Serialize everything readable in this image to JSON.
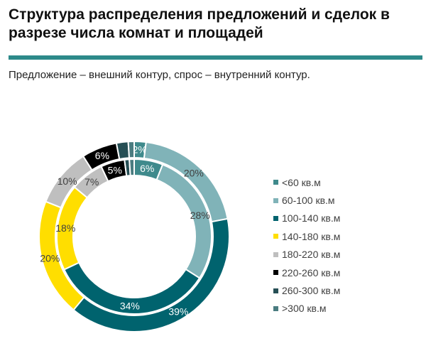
{
  "header": {
    "title": "Структура распределения предложений и сделок в разрезе числа комнат и площадей",
    "subtitle": "Предложение – внешний контур, спрос – внутренний контур."
  },
  "chart_data": {
    "type": "pie",
    "subtype": "double-donut",
    "categories": [
      "<60 кв.м",
      "60-100 кв.м",
      "100-140 кв.м",
      "140-180 кв.м",
      "180-220 кв.м",
      "220-260 кв.м",
      "260-300 кв.м",
      ">300 кв.м"
    ],
    "colors": [
      "#3f8a8c",
      "#80b3b8",
      "#00636e",
      "#ffde00",
      "#bfbfbf",
      "#000000",
      "#264f55",
      "#4a7c80"
    ],
    "series": [
      {
        "name": "Предложение",
        "ring": "outer",
        "values": [
          2,
          20,
          39,
          20,
          10,
          6,
          2,
          1
        ],
        "labels": [
          "2%",
          "20%",
          "39%",
          "20%",
          "10%",
          "6%",
          "",
          ""
        ]
      },
      {
        "name": "Спрос",
        "ring": "inner",
        "values": [
          6,
          28,
          34,
          18,
          7,
          5,
          1,
          1
        ],
        "labels": [
          "6%",
          "28%",
          "34%",
          "18%",
          "7%",
          "5%",
          "",
          ""
        ]
      }
    ],
    "legend": "right"
  }
}
